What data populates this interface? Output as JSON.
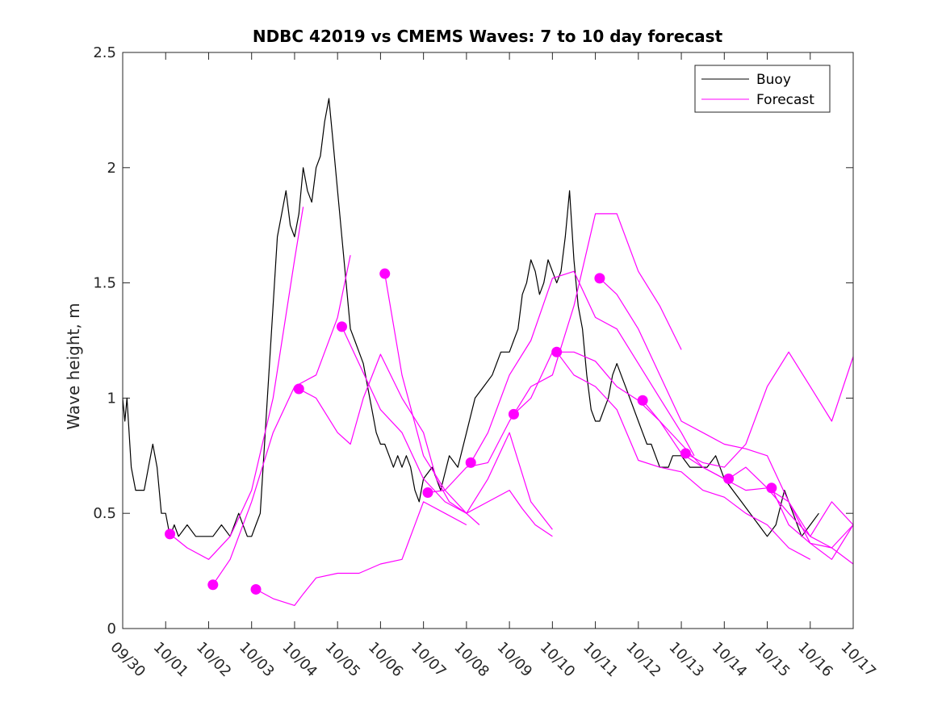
{
  "chart_data": {
    "type": "line",
    "title": "NDBC 42019 vs CMEMS Waves: 7 to 10 day forecast",
    "xlabel": "",
    "ylabel": "Wave height, m",
    "xlim": [
      0,
      17
    ],
    "ylim": [
      0,
      2.5
    ],
    "yticks": [
      0,
      0.5,
      1,
      1.5,
      2,
      2.5
    ],
    "ytick_labels": [
      "0",
      "0.5",
      "1",
      "1.5",
      "2",
      "2.5"
    ],
    "xtick_labels": [
      "09/30",
      "10/01",
      "10/02",
      "10/03",
      "10/04",
      "10/05",
      "10/06",
      "10/07",
      "10/08",
      "10/09",
      "10/10",
      "10/11",
      "10/12",
      "10/13",
      "10/14",
      "10/15",
      "10/16",
      "10/17"
    ],
    "legend": {
      "placement": "top-right",
      "entries": [
        "Buoy",
        "Forecast"
      ]
    },
    "colors": {
      "buoy": "#000000",
      "forecast": "#ff00ff",
      "axes": "#262626"
    },
    "series": [
      {
        "name": "Buoy",
        "color": "#000000",
        "x": [
          0,
          0.05,
          0.1,
          0.2,
          0.3,
          0.4,
          0.5,
          0.6,
          0.7,
          0.8,
          0.9,
          1.0,
          1.1,
          1.2,
          1.3,
          1.5,
          1.7,
          1.9,
          2.1,
          2.3,
          2.5,
          2.7,
          2.9,
          3.0,
          3.1,
          3.2,
          3.3,
          3.4,
          3.5,
          3.6,
          3.7,
          3.8,
          3.9,
          4.0,
          4.1,
          4.2,
          4.3,
          4.4,
          4.5,
          4.6,
          4.7,
          4.8,
          4.9,
          5.0,
          5.1,
          5.2,
          5.3,
          5.4,
          5.5,
          5.6,
          5.7,
          5.8,
          5.9,
          6.0,
          6.1,
          6.2,
          6.3,
          6.4,
          6.5,
          6.6,
          6.7,
          6.8,
          6.9,
          7.0,
          7.2,
          7.4,
          7.6,
          7.8,
          8.0,
          8.2,
          8.4,
          8.6,
          8.8,
          9.0,
          9.1,
          9.2,
          9.3,
          9.4,
          9.5,
          9.6,
          9.7,
          9.8,
          9.9,
          10.0,
          10.1,
          10.2,
          10.3,
          10.4,
          10.5,
          10.6,
          10.7,
          10.8,
          10.9,
          11.0,
          11.1,
          11.2,
          11.3,
          11.4,
          11.5,
          11.6,
          11.7,
          11.8,
          11.9,
          12.0,
          12.1,
          12.2,
          12.3,
          12.4,
          12.5,
          12.6,
          12.7,
          12.8,
          12.9,
          13.0,
          13.2,
          13.4,
          13.6,
          13.8,
          14.0,
          14.2,
          14.4,
          14.6,
          14.8,
          15.0,
          15.2,
          15.4,
          15.6,
          15.8,
          16.0,
          16.2
        ],
        "values": [
          1.0,
          0.9,
          1.0,
          0.7,
          0.6,
          0.6,
          0.6,
          0.7,
          0.8,
          0.7,
          0.5,
          0.5,
          0.4,
          0.45,
          0.4,
          0.45,
          0.4,
          0.4,
          0.4,
          0.45,
          0.4,
          0.5,
          0.4,
          0.4,
          0.45,
          0.5,
          0.8,
          1.1,
          1.4,
          1.7,
          1.8,
          1.9,
          1.75,
          1.7,
          1.8,
          2.0,
          1.9,
          1.85,
          2.0,
          2.05,
          2.2,
          2.3,
          2.1,
          1.9,
          1.7,
          1.5,
          1.3,
          1.25,
          1.2,
          1.15,
          1.05,
          0.95,
          0.85,
          0.8,
          0.8,
          0.75,
          0.7,
          0.75,
          0.7,
          0.75,
          0.7,
          0.6,
          0.55,
          0.65,
          0.7,
          0.6,
          0.75,
          0.7,
          0.85,
          1.0,
          1.05,
          1.1,
          1.2,
          1.2,
          1.25,
          1.3,
          1.45,
          1.5,
          1.6,
          1.55,
          1.45,
          1.5,
          1.6,
          1.55,
          1.5,
          1.55,
          1.7,
          1.9,
          1.6,
          1.4,
          1.3,
          1.1,
          0.95,
          0.9,
          0.9,
          0.95,
          1.0,
          1.1,
          1.15,
          1.1,
          1.05,
          1.0,
          0.95,
          0.9,
          0.85,
          0.8,
          0.8,
          0.75,
          0.7,
          0.7,
          0.7,
          0.75,
          0.75,
          0.75,
          0.7,
          0.7,
          0.7,
          0.75,
          0.65,
          0.6,
          0.55,
          0.5,
          0.45,
          0.4,
          0.45,
          0.6,
          0.5,
          0.4,
          0.45,
          0.5
        ]
      },
      {
        "name": "Forecast 1",
        "color": "#ff00ff",
        "x": [
          1.1,
          1.5,
          2.0,
          2.5,
          3.0,
          3.5,
          4.0,
          4.2
        ],
        "values": [
          0.41,
          0.35,
          0.3,
          0.4,
          0.6,
          1.0,
          1.6,
          1.83
        ]
      },
      {
        "name": "Forecast 2",
        "color": "#ff00ff",
        "x": [
          2.1,
          2.5,
          3.0,
          3.5,
          4.0,
          4.5,
          5.0,
          5.3
        ],
        "values": [
          0.19,
          0.3,
          0.55,
          0.85,
          1.05,
          1.1,
          1.35,
          1.62
        ]
      },
      {
        "name": "Forecast 3",
        "color": "#ff00ff",
        "x": [
          3.1,
          3.5,
          4.0,
          4.2,
          4.5,
          5.0,
          5.2,
          5.5,
          6.0,
          6.5,
          7.0,
          7.5,
          8.0
        ],
        "values": [
          0.17,
          0.13,
          0.1,
          0.15,
          0.22,
          0.24,
          0.24,
          0.24,
          0.28,
          0.3,
          0.55,
          0.5,
          0.45
        ]
      },
      {
        "name": "Forecast 4",
        "color": "#ff00ff",
        "x": [
          4.1,
          4.5,
          5.0,
          5.3,
          5.6,
          6.0,
          6.5,
          7.0,
          7.3,
          7.6,
          8.0,
          8.3
        ],
        "values": [
          1.04,
          1.0,
          0.85,
          0.8,
          1.0,
          1.19,
          1.0,
          0.85,
          0.65,
          0.55,
          0.5,
          0.45
        ]
      },
      {
        "name": "Forecast 5",
        "color": "#ff00ff",
        "x": [
          5.1,
          5.5,
          6.0,
          6.5,
          7.0,
          7.5,
          8.0,
          8.5,
          9.0,
          9.3,
          9.6,
          10.0
        ],
        "values": [
          1.31,
          1.15,
          0.95,
          0.85,
          0.65,
          0.55,
          0.5,
          0.55,
          0.6,
          0.52,
          0.45,
          0.4
        ]
      },
      {
        "name": "Forecast 6",
        "color": "#ff00ff",
        "x": [
          6.1,
          6.5,
          7.0,
          7.5,
          8.0,
          8.5,
          9.0,
          9.5,
          10.0
        ],
        "values": [
          1.54,
          1.1,
          0.75,
          0.6,
          0.5,
          0.65,
          0.85,
          0.55,
          0.43
        ]
      },
      {
        "name": "Forecast 7",
        "color": "#ff00ff",
        "x": [
          7.1,
          7.5,
          8.0,
          8.5,
          9.0,
          9.5,
          10.0,
          10.5,
          11.0,
          11.5,
          12.0,
          12.5,
          13.0
        ],
        "values": [
          0.59,
          0.6,
          0.7,
          0.72,
          0.9,
          1.05,
          1.1,
          1.4,
          1.8,
          1.8,
          1.55,
          1.4,
          1.21
        ]
      },
      {
        "name": "Forecast 8",
        "color": "#ff00ff",
        "x": [
          8.1,
          8.5,
          9.0,
          9.5,
          10.0,
          10.5,
          11.0,
          11.5,
          12.0,
          12.5,
          13.0,
          13.3
        ],
        "values": [
          0.72,
          0.85,
          1.1,
          1.25,
          1.52,
          1.55,
          1.35,
          1.3,
          1.15,
          1.0,
          0.85,
          0.75
        ]
      },
      {
        "name": "Forecast 9",
        "color": "#ff00ff",
        "x": [
          9.1,
          9.5,
          10.0,
          10.5,
          11.0,
          11.5,
          12.0,
          12.5,
          13.0,
          13.5,
          14.0
        ],
        "values": [
          0.93,
          1.0,
          1.2,
          1.2,
          1.16,
          1.05,
          0.99,
          0.9,
          0.76,
          0.7,
          0.65
        ]
      },
      {
        "name": "Forecast 10",
        "color": "#ff00ff",
        "x": [
          10.1,
          10.5,
          11.0,
          11.5,
          12.0,
          12.5,
          13.0,
          13.5,
          14.0,
          14.5,
          15.0,
          15.5,
          16.0
        ],
        "values": [
          1.2,
          1.1,
          1.05,
          0.95,
          0.73,
          0.7,
          0.68,
          0.6,
          0.57,
          0.5,
          0.45,
          0.35,
          0.3
        ]
      },
      {
        "name": "Forecast 11",
        "color": "#ff00ff",
        "x": [
          11.1,
          11.5,
          12.0,
          12.5,
          13.0,
          13.5,
          14.0,
          14.5,
          15.0,
          15.5,
          16.0,
          16.5,
          17.0
        ],
        "values": [
          1.52,
          1.45,
          1.3,
          1.1,
          0.9,
          0.85,
          0.8,
          0.78,
          0.75,
          0.55,
          0.4,
          0.35,
          0.28
        ]
      },
      {
        "name": "Forecast 12",
        "color": "#ff00ff",
        "x": [
          12.1,
          12.5,
          13.0,
          13.5,
          14.0,
          14.5,
          15.0,
          15.5,
          16.0,
          16.5,
          17.0
        ],
        "values": [
          0.99,
          0.9,
          0.8,
          0.7,
          0.65,
          0.6,
          0.61,
          0.55,
          0.37,
          0.3,
          0.45
        ]
      },
      {
        "name": "Forecast 13",
        "color": "#ff00ff",
        "x": [
          13.1,
          13.5,
          14.0,
          14.5,
          15.0,
          15.5,
          16.0,
          16.5,
          17.0
        ],
        "values": [
          0.76,
          0.72,
          0.7,
          0.8,
          1.05,
          1.2,
          1.05,
          0.9,
          1.18
        ]
      },
      {
        "name": "Forecast 14",
        "color": "#ff00ff",
        "x": [
          14.1,
          14.5,
          15.0,
          15.5,
          16.0,
          16.5,
          17.0
        ],
        "values": [
          0.65,
          0.7,
          0.61,
          0.5,
          0.4,
          0.55,
          0.45
        ]
      },
      {
        "name": "Forecast 15",
        "color": "#ff00ff",
        "x": [
          15.1,
          15.5,
          16.0,
          16.5,
          17.0
        ],
        "values": [
          0.61,
          0.45,
          0.37,
          0.35,
          0.45
        ]
      }
    ]
  }
}
